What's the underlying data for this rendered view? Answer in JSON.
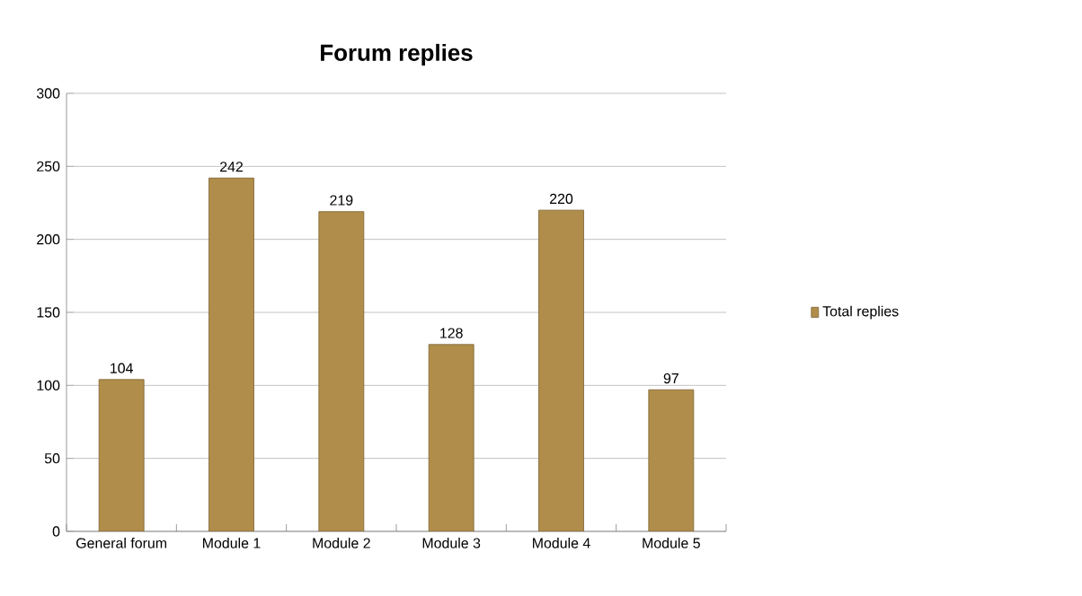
{
  "chart_data": {
    "type": "bar",
    "title": "Forum replies",
    "categories": [
      "General forum",
      "Module 1",
      "Module 2",
      "Module 3",
      "Module 4",
      "Module 5"
    ],
    "series": [
      {
        "name": "Total replies",
        "color": "#b08d4a",
        "values": [
          104,
          242,
          219,
          128,
          220,
          97
        ]
      }
    ],
    "ylim": [
      0,
      300
    ],
    "yticks": [
      0,
      50,
      100,
      150,
      200,
      250,
      300
    ],
    "grid": "y",
    "legend": "right",
    "data_labels": true
  }
}
